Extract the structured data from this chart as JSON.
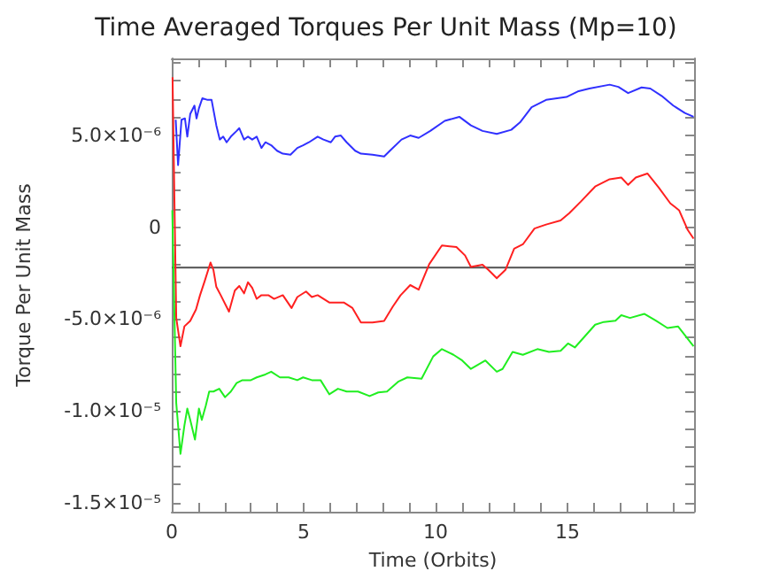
{
  "chart_data": {
    "type": "line",
    "title": "Time Averaged Torques Per Unit Mass (Mp=10)",
    "xlabel": "Time (Orbits)",
    "ylabel": "Torque Per Unit Mass",
    "xlim": [
      0,
      19.8
    ],
    "ylim": [
      -1.55e-05,
      9.2e-06
    ],
    "xticks": [
      0,
      {
        "value": 1,
        "label": null
      },
      {
        "value": 2,
        "label": null
      },
      {
        "value": 3,
        "label": null
      },
      {
        "value": 4,
        "label": null
      },
      5,
      {
        "value": 6,
        "label": null
      },
      {
        "value": 7,
        "label": null
      },
      {
        "value": 8,
        "label": null
      },
      {
        "value": 9,
        "label": null
      },
      10,
      {
        "value": 11,
        "label": null
      },
      {
        "value": 12,
        "label": null
      },
      {
        "value": 13,
        "label": null
      },
      {
        "value": 14,
        "label": null
      },
      15,
      {
        "value": 16,
        "label": null
      },
      {
        "value": 17,
        "label": null
      },
      {
        "value": 18,
        "label": null
      },
      {
        "value": 19,
        "label": null
      }
    ],
    "yticks": [
      {
        "value": -1.5e-05,
        "label": "-1.5×10⁻⁵"
      },
      {
        "value": -1.4e-05,
        "label": null
      },
      {
        "value": -1.3e-05,
        "label": null
      },
      {
        "value": -1.2e-05,
        "label": null
      },
      {
        "value": -1.1e-05,
        "label": null
      },
      {
        "value": -1e-05,
        "label": "-1.0×10⁻⁵"
      },
      {
        "value": -9e-06,
        "label": null
      },
      {
        "value": -8e-06,
        "label": null
      },
      {
        "value": -7e-06,
        "label": null
      },
      {
        "value": -6e-06,
        "label": null
      },
      {
        "value": -5e-06,
        "label": "-5.0×10⁻⁶"
      },
      {
        "value": -4e-06,
        "label": null
      },
      {
        "value": -3e-06,
        "label": null
      },
      {
        "value": -2e-06,
        "label": null
      },
      {
        "value": -1e-06,
        "label": null
      },
      0,
      {
        "value": 1e-06,
        "label": null
      },
      {
        "value": 2e-06,
        "label": null
      },
      {
        "value": 3e-06,
        "label": null
      },
      {
        "value": 4e-06,
        "label": null
      },
      {
        "value": 5e-06,
        "label": "5.0×10⁻⁶"
      },
      {
        "value": 6e-06,
        "label": null
      },
      {
        "value": 7e-06,
        "label": null
      },
      {
        "value": 8e-06,
        "label": null
      },
      {
        "value": 9e-06,
        "label": null
      }
    ],
    "grid": false,
    "marker": "none",
    "line_style": "solid",
    "ref_lines": [
      {
        "axis": "y",
        "value": -2.2e-06,
        "color": "#505050"
      }
    ],
    "series": [
      {
        "color": "#3030ff",
        "x": [
          0.15,
          0.24,
          0.37,
          0.5,
          0.59,
          0.7,
          0.86,
          0.94,
          1.03,
          1.16,
          1.36,
          1.51,
          1.69,
          1.82,
          1.95,
          2.08,
          2.24,
          2.46,
          2.56,
          2.74,
          2.89,
          3.05,
          3.22,
          3.4,
          3.55,
          3.77,
          3.99,
          4.21,
          4.5,
          4.76,
          4.98,
          5.2,
          5.53,
          5.75,
          6.03,
          6.19,
          6.41,
          6.63,
          6.95,
          7.17,
          7.61,
          8.05,
          8.27,
          8.71,
          9.04,
          9.36,
          9.8,
          10.35,
          10.9,
          11.34,
          11.78,
          12.32,
          12.87,
          13.2,
          13.64,
          14.19,
          14.96,
          15.39,
          15.83,
          16.6,
          16.93,
          17.3,
          17.81,
          18.14,
          18.57,
          19.01,
          19.45,
          19.78
        ],
        "values": [
          5.86e-06,
          3.39e-06,
          5.86e-06,
          5.93e-06,
          4.94e-06,
          6.17e-06,
          6.63e-06,
          5.93e-06,
          6.48e-06,
          7.03e-06,
          6.94e-06,
          6.94e-06,
          5.55e-06,
          4.78e-06,
          4.94e-06,
          4.63e-06,
          4.94e-06,
          5.25e-06,
          5.4e-06,
          4.78e-06,
          4.94e-06,
          4.78e-06,
          4.94e-06,
          4.32e-06,
          4.63e-06,
          4.47e-06,
          4.17e-06,
          4.01e-06,
          3.95e-06,
          4.32e-06,
          4.47e-06,
          4.63e-06,
          4.94e-06,
          4.78e-06,
          4.63e-06,
          4.94e-06,
          5e-06,
          4.63e-06,
          4.17e-06,
          4.01e-06,
          3.95e-06,
          3.86e-06,
          4.17e-06,
          4.78e-06,
          5e-06,
          4.87e-06,
          5.25e-06,
          5.8e-06,
          6.02e-06,
          5.55e-06,
          5.25e-06,
          5.09e-06,
          5.31e-06,
          5.71e-06,
          6.54e-06,
          6.94e-06,
          7.1e-06,
          7.4e-06,
          7.56e-06,
          7.77e-06,
          7.65e-06,
          7.31e-06,
          7.62e-06,
          7.56e-06,
          7.16e-06,
          6.63e-06,
          6.23e-06,
          6.02e-06
        ]
      },
      {
        "color": "#ff2020",
        "x": [
          0.03,
          0.17,
          0.33,
          0.48,
          0.7,
          0.92,
          1.07,
          1.25,
          1.47,
          1.58,
          1.69,
          1.86,
          2.17,
          2.39,
          2.56,
          2.74,
          2.89,
          3.05,
          3.22,
          3.4,
          3.66,
          3.88,
          4.21,
          4.54,
          4.76,
          5.09,
          5.31,
          5.53,
          5.97,
          6.52,
          6.85,
          7.17,
          7.61,
          8.05,
          8.38,
          8.67,
          9.04,
          9.36,
          9.76,
          10.24,
          10.79,
          11.12,
          11.34,
          11.78,
          12.0,
          12.32,
          12.65,
          12.98,
          13.31,
          13.75,
          14.19,
          14.74,
          15.07,
          15.5,
          16.05,
          16.6,
          17.04,
          17.3,
          17.59,
          18.03,
          18.46,
          18.9,
          19.23,
          19.56,
          19.78
        ],
        "values": [
          8.18e-06,
          -4.94e-06,
          -6.48e-06,
          -5.4e-06,
          -5.1e-06,
          -4.48e-06,
          -3.71e-06,
          -2.93e-06,
          -1.92e-06,
          -2.32e-06,
          -3.25e-06,
          -3.71e-06,
          -4.6e-06,
          -3.45e-06,
          -3.2e-06,
          -3.6e-06,
          -3e-06,
          -3.3e-06,
          -3.9e-06,
          -3.7e-06,
          -3.7e-06,
          -3.9e-06,
          -3.7e-06,
          -4.4e-06,
          -3.8e-06,
          -3.5e-06,
          -3.8e-06,
          -3.7e-06,
          -4.1e-06,
          -4.1e-06,
          -4.4e-06,
          -5.19e-06,
          -5.19e-06,
          -5.1e-06,
          -4.32e-06,
          -3.71e-06,
          -3.15e-06,
          -3.4e-06,
          -2.01e-06,
          -9.9e-07,
          -1.08e-06,
          -1.54e-06,
          -2.16e-06,
          -2.04e-06,
          -2.32e-06,
          -2.78e-06,
          -2.32e-06,
          -1.17e-06,
          -9.3e-07,
          -7e-08,
          1.5e-07,
          3.7e-07,
          7.7e-07,
          1.39e-06,
          2.22e-06,
          2.62e-06,
          2.71e-06,
          2.31e-06,
          2.71e-06,
          2.93e-06,
          2.16e-06,
          1.3e-06,
          9.3e-07,
          -1.5e-07,
          -6.2e-07
        ]
      },
      {
        "color": "#20ee20",
        "x": [
          0.02,
          0.17,
          0.33,
          0.48,
          0.59,
          0.7,
          0.88,
          1.03,
          1.14,
          1.29,
          1.42,
          1.58,
          1.8,
          2.02,
          2.24,
          2.46,
          2.68,
          3.0,
          3.22,
          3.55,
          3.77,
          4.1,
          4.43,
          4.76,
          4.98,
          5.31,
          5.64,
          5.97,
          6.3,
          6.63,
          7.06,
          7.5,
          7.83,
          8.16,
          8.6,
          8.93,
          9.47,
          9.91,
          10.24,
          10.68,
          11.01,
          11.34,
          11.89,
          12.32,
          12.54,
          12.92,
          13.31,
          13.86,
          14.3,
          14.74,
          15.02,
          15.28,
          15.61,
          16.05,
          16.38,
          16.82,
          17.04,
          17.37,
          17.92,
          18.35,
          18.79,
          19.19,
          19.78
        ],
        "values": [
          9.3e-07,
          -9.57e-06,
          -1.235e-05,
          -1.08e-05,
          -9.88e-06,
          -1.05e-05,
          -1.157e-05,
          -9.88e-06,
          -1.05e-05,
          -9.72e-06,
          -8.95e-06,
          -8.95e-06,
          -8.8e-06,
          -9.26e-06,
          -8.95e-06,
          -8.49e-06,
          -8.33e-06,
          -8.33e-06,
          -8.18e-06,
          -8.02e-06,
          -7.87e-06,
          -8.18e-06,
          -8.18e-06,
          -8.33e-06,
          -8.18e-06,
          -8.33e-06,
          -8.33e-06,
          -9.1e-06,
          -8.8e-06,
          -8.95e-06,
          -8.95e-06,
          -9.2e-06,
          -9e-06,
          -8.95e-06,
          -8.4e-06,
          -8.18e-06,
          -8.25e-06,
          -7.04e-06,
          -6.64e-06,
          -6.95e-06,
          -7.26e-06,
          -7.72e-06,
          -7.26e-06,
          -7.87e-06,
          -7.72e-06,
          -6.79e-06,
          -6.95e-06,
          -6.64e-06,
          -6.79e-06,
          -6.73e-06,
          -6.33e-06,
          -6.55e-06,
          -6.02e-06,
          -5.31e-06,
          -5.16e-06,
          -5.09e-06,
          -4.79e-06,
          -4.94e-06,
          -4.72e-06,
          -5.09e-06,
          -5.49e-06,
          -5.4e-06,
          -6.48e-06
        ]
      }
    ]
  }
}
